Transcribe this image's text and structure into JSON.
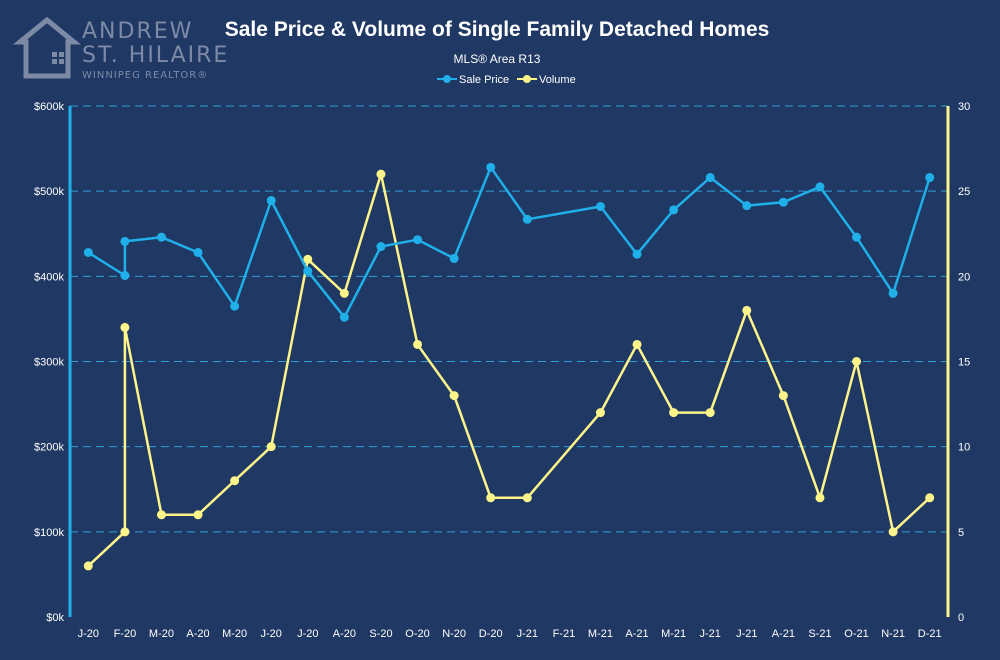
{
  "logo": {
    "line1": "ANDREW",
    "line2": "ST. HILAIRE",
    "line3": "WINNIPEG REALTOR®"
  },
  "colors": {
    "background": "#203864",
    "price": "#1fb0ea",
    "volume": "#fdf58a",
    "grid": "#2f9fd6",
    "logo": "#7d8aa6"
  },
  "chart_data": {
    "type": "line",
    "title": "Sale Price & Volume of Single Family Detached Homes",
    "subtitle": "MLS® Area R13",
    "legend": [
      "Sale Price",
      "Volume"
    ],
    "legend_position": "top-center",
    "grid": true,
    "categories": [
      "J-20",
      "F-20",
      "M-20",
      "A-20",
      "M-20",
      "J-20",
      "J-20",
      "A-20",
      "S-20",
      "O-20",
      "N-20",
      "D-20",
      "J-21",
      "F-21",
      "M-21",
      "A-21",
      "M-21",
      "J-21",
      "J-21",
      "A-21",
      "S-21",
      "O-21",
      "N-21",
      "D-21"
    ],
    "y_left": {
      "range": [
        0,
        600000
      ],
      "ticks": [
        0,
        100000,
        200000,
        300000,
        400000,
        500000,
        600000
      ],
      "tick_labels": [
        "$0k",
        "$100k",
        "$200k",
        "$300k",
        "$400k",
        "$500k",
        "$600k"
      ]
    },
    "y_right": {
      "range": [
        0,
        30
      ],
      "ticks": [
        0,
        5,
        10,
        15,
        20,
        25,
        30
      ],
      "tick_labels": [
        "0",
        "5",
        "10",
        "15",
        "20",
        "25",
        "30"
      ]
    },
    "series": [
      {
        "name": "Sale Price",
        "axis": "left",
        "points": [
          {
            "x": 0,
            "y": 428000
          },
          {
            "x": 1,
            "y": 401000
          },
          {
            "x": 1,
            "y": 441000
          },
          {
            "x": 2,
            "y": 446000
          },
          {
            "x": 3,
            "y": 428000
          },
          {
            "x": 4,
            "y": 365000
          },
          {
            "x": 5,
            "y": 489000
          },
          {
            "x": 6,
            "y": 406000
          },
          {
            "x": 7,
            "y": 352000
          },
          {
            "x": 8,
            "y": 435000
          },
          {
            "x": 9,
            "y": 443000
          },
          {
            "x": 10,
            "y": 421000
          },
          {
            "x": 11,
            "y": 528000
          },
          {
            "x": 12,
            "y": 467000
          },
          {
            "x": 14,
            "y": 482000
          },
          {
            "x": 15,
            "y": 426000
          },
          {
            "x": 16,
            "y": 478000
          },
          {
            "x": 17,
            "y": 516000
          },
          {
            "x": 18,
            "y": 483000
          },
          {
            "x": 19,
            "y": 487000
          },
          {
            "x": 20,
            "y": 505000
          },
          {
            "x": 21,
            "y": 446000
          },
          {
            "x": 22,
            "y": 380000
          },
          {
            "x": 23,
            "y": 516000
          }
        ]
      },
      {
        "name": "Volume",
        "axis": "right",
        "points": [
          {
            "x": 0,
            "y": 3
          },
          {
            "x": 1,
            "y": 5
          },
          {
            "x": 1,
            "y": 17
          },
          {
            "x": 2,
            "y": 6
          },
          {
            "x": 3,
            "y": 6
          },
          {
            "x": 4,
            "y": 8
          },
          {
            "x": 5,
            "y": 10
          },
          {
            "x": 6,
            "y": 21
          },
          {
            "x": 7,
            "y": 19
          },
          {
            "x": 8,
            "y": 26
          },
          {
            "x": 9,
            "y": 16
          },
          {
            "x": 10,
            "y": 13
          },
          {
            "x": 11,
            "y": 7
          },
          {
            "x": 12,
            "y": 7
          },
          {
            "x": 14,
            "y": 12
          },
          {
            "x": 15,
            "y": 16
          },
          {
            "x": 16,
            "y": 12
          },
          {
            "x": 17,
            "y": 12
          },
          {
            "x": 18,
            "y": 18
          },
          {
            "x": 19,
            "y": 13
          },
          {
            "x": 20,
            "y": 7
          },
          {
            "x": 21,
            "y": 15
          },
          {
            "x": 22,
            "y": 5
          },
          {
            "x": 23,
            "y": 7
          }
        ]
      }
    ]
  }
}
